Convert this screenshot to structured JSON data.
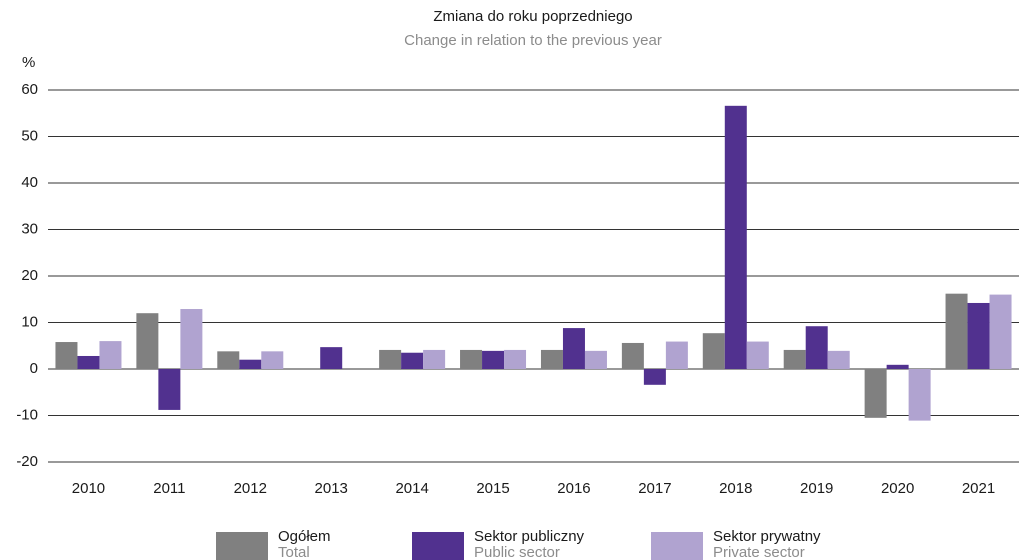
{
  "chart_data": {
    "type": "bar",
    "title": "Zmiana do roku poprzedniego",
    "subtitle": "Change in relation to the previous year",
    "y_label": "%",
    "categories": [
      "2010",
      "2011",
      "2012",
      "2013",
      "2014",
      "2015",
      "2016",
      "2017",
      "2018",
      "2019",
      "2020",
      "2021"
    ],
    "series": [
      {
        "name": "Ogółem",
        "name_en": "Total",
        "color": "#808080",
        "values": [
          5.8,
          12,
          3.8,
          null,
          4.1,
          4.1,
          4.1,
          5.6,
          7.7,
          4.1,
          -10.5,
          16.2
        ]
      },
      {
        "name": "Sektor publiczny",
        "name_en": "Public sector",
        "color": "#51318f",
        "values": [
          2.8,
          -8.8,
          2.0,
          4.7,
          3.5,
          3.9,
          8.8,
          -3.4,
          56.6,
          9.2,
          0.9,
          14.2
        ]
      },
      {
        "name": "Sektor prywatny",
        "name_en": "Private sector",
        "color": "#b0a3d0",
        "values": [
          6.0,
          12.9,
          3.8,
          null,
          4.1,
          4.1,
          3.9,
          5.9,
          5.9,
          3.9,
          -11.1,
          16.0
        ]
      }
    ],
    "ylim": [
      -20,
      60
    ],
    "yticks": [
      -20,
      -10,
      0,
      10,
      20,
      30,
      40,
      50,
      60
    ],
    "grid": true
  }
}
